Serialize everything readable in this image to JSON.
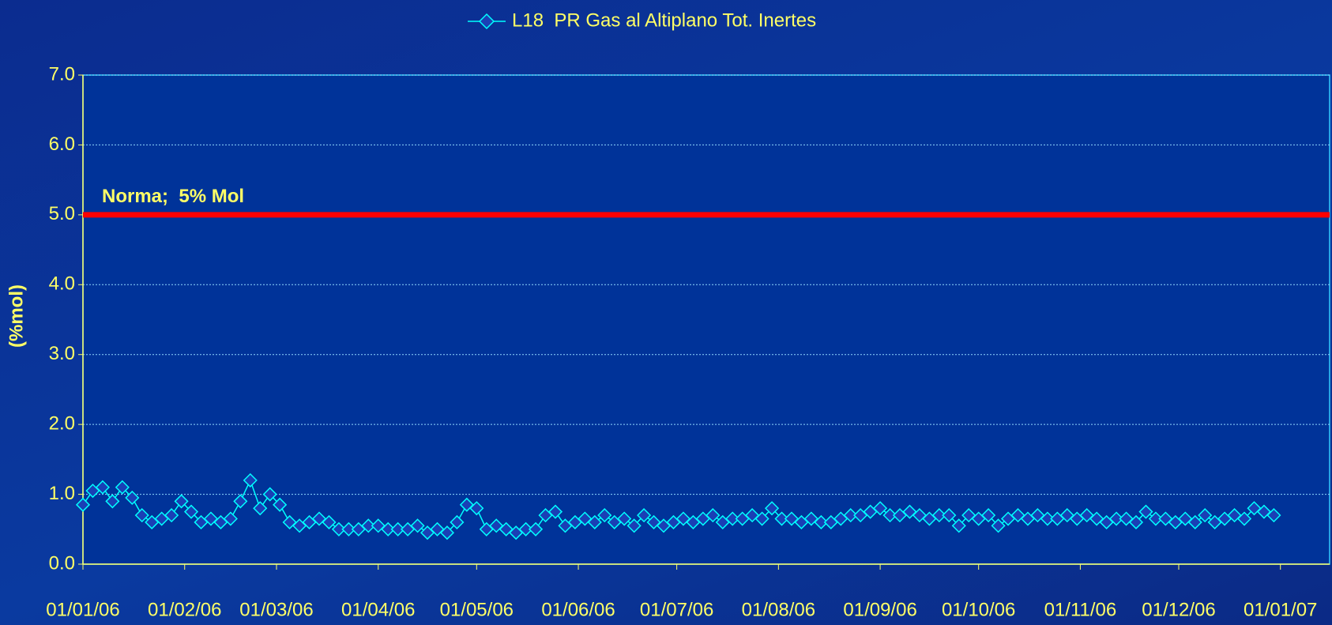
{
  "chart_data": {
    "type": "line",
    "series": [
      {
        "name": "L18  PR Gas al Altiplano Tot. Inertes",
        "color": "#00ffff",
        "x": [
          "01/01/06",
          "04/01/06",
          "07/01/06",
          "10/01/06",
          "13/01/06",
          "16/01/06",
          "19/01/06",
          "22/01/06",
          "25/01/06",
          "28/01/06",
          "31/01/06",
          "03/02/06",
          "06/02/06",
          "09/02/06",
          "12/02/06",
          "15/02/06",
          "18/02/06",
          "21/02/06",
          "24/02/06",
          "27/02/06",
          "02/03/06",
          "05/03/06",
          "08/03/06",
          "11/03/06",
          "14/03/06",
          "17/03/06",
          "20/03/06",
          "23/03/06",
          "26/03/06",
          "29/03/06",
          "01/04/06",
          "04/04/06",
          "07/04/06",
          "10/04/06",
          "13/04/06",
          "16/04/06",
          "19/04/06",
          "22/04/06",
          "25/04/06",
          "28/04/06",
          "01/05/06",
          "04/05/06",
          "07/05/06",
          "10/05/06",
          "13/05/06",
          "16/05/06",
          "19/05/06",
          "22/05/06",
          "25/05/06",
          "28/05/06",
          "31/05/06",
          "03/06/06",
          "06/06/06",
          "09/06/06",
          "12/06/06",
          "15/06/06",
          "18/06/06",
          "21/06/06",
          "24/06/06",
          "27/06/06",
          "30/06/06",
          "03/07/06",
          "06/07/06",
          "09/07/06",
          "12/07/06",
          "15/07/06",
          "18/07/06",
          "21/07/06",
          "24/07/06",
          "27/07/06",
          "30/07/06",
          "02/08/06",
          "05/08/06",
          "08/08/06",
          "11/08/06",
          "14/08/06",
          "17/08/06",
          "20/08/06",
          "23/08/06",
          "26/08/06",
          "29/08/06",
          "01/09/06",
          "04/09/06",
          "07/09/06",
          "10/09/06",
          "13/09/06",
          "16/09/06",
          "19/09/06",
          "22/09/06",
          "25/09/06",
          "28/09/06",
          "01/10/06",
          "04/10/06",
          "07/10/06",
          "10/10/06",
          "13/10/06",
          "16/10/06",
          "19/10/06",
          "22/10/06",
          "25/10/06",
          "28/10/06",
          "31/10/06",
          "03/11/06",
          "06/11/06",
          "09/11/06",
          "12/11/06",
          "15/11/06",
          "18/11/06",
          "21/11/06",
          "24/11/06",
          "27/11/06",
          "30/11/06",
          "03/12/06",
          "06/12/06",
          "09/12/06",
          "12/12/06",
          "15/12/06",
          "18/12/06",
          "21/12/06",
          "24/12/06",
          "27/12/06",
          "30/12/06"
        ],
        "values": [
          0.85,
          1.05,
          1.1,
          0.9,
          1.1,
          0.95,
          0.7,
          0.6,
          0.65,
          0.7,
          0.9,
          0.75,
          0.6,
          0.65,
          0.6,
          0.65,
          0.9,
          1.2,
          0.8,
          1.0,
          0.85,
          0.6,
          0.55,
          0.6,
          0.65,
          0.6,
          0.5,
          0.5,
          0.5,
          0.55,
          0.55,
          0.5,
          0.5,
          0.5,
          0.55,
          0.45,
          0.5,
          0.45,
          0.6,
          0.85,
          0.8,
          0.5,
          0.55,
          0.5,
          0.45,
          0.5,
          0.5,
          0.7,
          0.75,
          0.55,
          0.6,
          0.65,
          0.6,
          0.7,
          0.6,
          0.65,
          0.55,
          0.7,
          0.6,
          0.55,
          0.6,
          0.65,
          0.6,
          0.65,
          0.7,
          0.6,
          0.65,
          0.65,
          0.7,
          0.65,
          0.8,
          0.65,
          0.65,
          0.6,
          0.65,
          0.6,
          0.6,
          0.65,
          0.7,
          0.7,
          0.75,
          0.8,
          0.7,
          0.7,
          0.75,
          0.7,
          0.65,
          0.7,
          0.7,
          0.55,
          0.7,
          0.65,
          0.7,
          0.55,
          0.65,
          0.7,
          0.65,
          0.7,
          0.65,
          0.65,
          0.7,
          0.65,
          0.7,
          0.65,
          0.6,
          0.65,
          0.65,
          0.6,
          0.75,
          0.65,
          0.65,
          0.6,
          0.65,
          0.6,
          0.7,
          0.6,
          0.65,
          0.7,
          0.65,
          0.8,
          0.75,
          0.7
        ]
      }
    ],
    "y_label": "(%mol)",
    "reference_line": {
      "value": 5,
      "label": "Norma;  5% Mol",
      "color": "#ff0000"
    },
    "xlim": [
      "01/01/06",
      "16/01/07"
    ],
    "xticks": [
      "01/01/06",
      "01/02/06",
      "01/03/06",
      "01/04/06",
      "01/05/06",
      "01/06/06",
      "01/07/06",
      "01/08/06",
      "01/09/06",
      "01/10/06",
      "01/11/06",
      "01/12/06",
      "01/01/07"
    ],
    "ylim": [
      0,
      7
    ],
    "yticks": [
      {
        "value": 0,
        "label": "0.0"
      },
      {
        "value": 1,
        "label": "1.0"
      },
      {
        "value": 2,
        "label": "2.0"
      },
      {
        "value": 3,
        "label": "3.0"
      },
      {
        "value": 4,
        "label": "4.0"
      },
      {
        "value": 5,
        "label": "5.0"
      },
      {
        "value": 6,
        "label": "6.0"
      },
      {
        "value": 7,
        "label": "7.0"
      }
    ],
    "grid": true,
    "legend": "top"
  }
}
